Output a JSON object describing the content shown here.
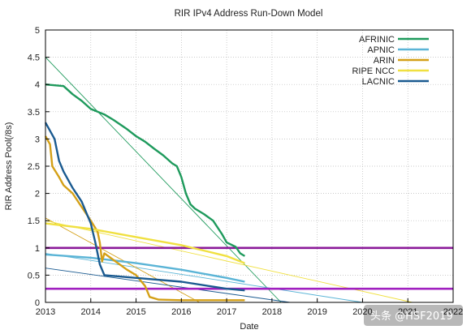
{
  "chart_data": {
    "type": "line",
    "title": "RIR IPv4 Address Run-Down Model",
    "xlabel": "Date",
    "ylabel": "RIR Address Pool(/8s)",
    "xlim": [
      2013,
      2022
    ],
    "ylim": [
      0,
      5
    ],
    "x_ticks": [
      "2013",
      "2014",
      "2015",
      "2016",
      "2017",
      "2018",
      "2019",
      "2020",
      "2021",
      "2022"
    ],
    "y_ticks": [
      "0",
      "0.5",
      "1",
      "1.5",
      "2",
      "2.5",
      "3",
      "3.5",
      "4",
      "4.5",
      "5"
    ],
    "grid": true,
    "legend_position": "top-right",
    "reference_lines": [
      {
        "y": 1,
        "color": "#8b1a9a"
      },
      {
        "y": 0.25,
        "color": "#a020c0"
      }
    ],
    "series": [
      {
        "name": "AFRINIC",
        "color": "#1e9a5c",
        "points": [
          [
            2013.0,
            4.0
          ],
          [
            2013.4,
            3.97
          ],
          [
            2013.6,
            3.82
          ],
          [
            2013.8,
            3.7
          ],
          [
            2014.0,
            3.55
          ],
          [
            2014.3,
            3.45
          ],
          [
            2014.5,
            3.35
          ],
          [
            2014.8,
            3.18
          ],
          [
            2015.0,
            3.05
          ],
          [
            2015.2,
            2.95
          ],
          [
            2015.4,
            2.82
          ],
          [
            2015.6,
            2.7
          ],
          [
            2015.8,
            2.55
          ],
          [
            2015.9,
            2.5
          ],
          [
            2016.0,
            2.3
          ],
          [
            2016.1,
            2.0
          ],
          [
            2016.2,
            1.8
          ],
          [
            2016.3,
            1.72
          ],
          [
            2016.5,
            1.62
          ],
          [
            2016.7,
            1.5
          ],
          [
            2016.9,
            1.25
          ],
          [
            2017.0,
            1.1
          ],
          [
            2017.2,
            1.02
          ],
          [
            2017.3,
            0.9
          ],
          [
            2017.4,
            0.85
          ]
        ],
        "trend": [
          [
            2013.0,
            4.5
          ],
          [
            2018.2,
            0.0
          ]
        ]
      },
      {
        "name": "APNIC",
        "color": "#5ab4d6",
        "points": [
          [
            2013.0,
            0.88
          ],
          [
            2014.0,
            0.82
          ],
          [
            2015.0,
            0.72
          ],
          [
            2016.0,
            0.6
          ],
          [
            2017.0,
            0.45
          ],
          [
            2017.4,
            0.38
          ]
        ],
        "trend": [
          [
            2013.0,
            0.9
          ],
          [
            2020.0,
            0.0
          ]
        ]
      },
      {
        "name": "ARIN",
        "color": "#d4a017",
        "points": [
          [
            2013.0,
            3.05
          ],
          [
            2013.1,
            2.9
          ],
          [
            2013.15,
            2.5
          ],
          [
            2013.3,
            2.3
          ],
          [
            2013.4,
            2.15
          ],
          [
            2013.6,
            2.0
          ],
          [
            2013.8,
            1.75
          ],
          [
            2014.0,
            1.5
          ],
          [
            2014.15,
            1.3
          ],
          [
            2014.2,
            1.1
          ],
          [
            2014.25,
            0.75
          ],
          [
            2014.3,
            0.9
          ],
          [
            2014.5,
            0.78
          ],
          [
            2014.8,
            0.6
          ],
          [
            2015.0,
            0.5
          ],
          [
            2015.2,
            0.3
          ],
          [
            2015.3,
            0.1
          ],
          [
            2015.5,
            0.05
          ],
          [
            2016.0,
            0.04
          ],
          [
            2017.0,
            0.04
          ],
          [
            2017.4,
            0.04
          ]
        ],
        "trend": [
          [
            2013.0,
            1.55
          ],
          [
            2016.4,
            0.0
          ]
        ]
      },
      {
        "name": "RIPE NCC",
        "color": "#f0e040",
        "points": [
          [
            2013.0,
            1.45
          ],
          [
            2014.0,
            1.35
          ],
          [
            2015.0,
            1.2
          ],
          [
            2016.0,
            1.05
          ],
          [
            2017.0,
            0.85
          ],
          [
            2017.4,
            0.72
          ]
        ],
        "trend": [
          [
            2013.0,
            1.5
          ],
          [
            2021.1,
            0.0
          ]
        ]
      },
      {
        "name": "LACNIC",
        "color": "#1a5a90",
        "points": [
          [
            2013.0,
            3.3
          ],
          [
            2013.2,
            3.0
          ],
          [
            2013.3,
            2.6
          ],
          [
            2013.4,
            2.4
          ],
          [
            2013.6,
            2.1
          ],
          [
            2013.8,
            1.85
          ],
          [
            2014.0,
            1.45
          ],
          [
            2014.1,
            1.1
          ],
          [
            2014.2,
            0.7
          ],
          [
            2014.3,
            0.5
          ],
          [
            2015.0,
            0.45
          ],
          [
            2016.0,
            0.38
          ],
          [
            2017.0,
            0.25
          ],
          [
            2017.4,
            0.22
          ]
        ],
        "trend": [
          [
            2013.0,
            0.63
          ],
          [
            2018.4,
            0.0
          ]
        ]
      }
    ]
  },
  "watermark": "头条 @HSF2019"
}
